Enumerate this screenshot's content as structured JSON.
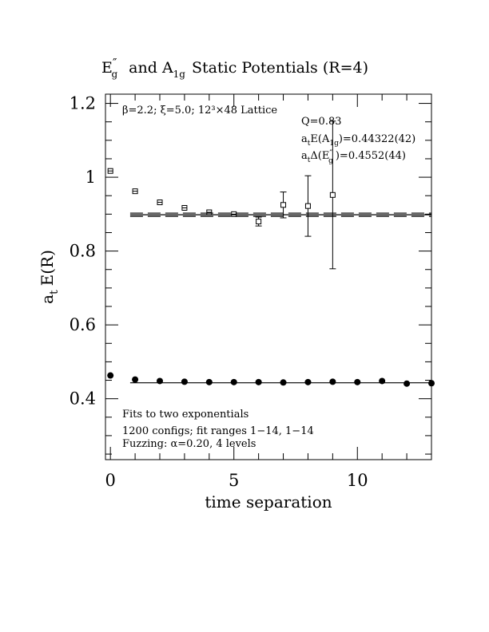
{
  "chart_data": {
    "type": "scatter",
    "title_parts": {
      "p1": "E",
      "p1_sup": "″",
      "p1_sub": "g",
      "p2": "and A",
      "p2_sub": "1g",
      "p3": "Static Potentials (R=4)"
    },
    "xlabel": "time separation",
    "ylabel_parts": {
      "main": "a",
      "sub": "t",
      "rest": "E(R)"
    },
    "xlim": [
      -0.2,
      13
    ],
    "ylim": [
      0.235,
      1.225
    ],
    "xticks": [
      0,
      5,
      10
    ],
    "xtick_labels": [
      "0",
      "5",
      "10"
    ],
    "yticks": [
      0.4,
      0.6,
      0.8,
      1.0,
      1.2
    ],
    "ytick_labels": [
      "0.4",
      "0.6",
      "0.8",
      "1",
      "1.2"
    ],
    "annotations": {
      "lattice": "β=2.2; ξ=5.0; 12³×48 Lattice",
      "q": "Q=0.83",
      "energy_parts": {
        "a": "a",
        "a_sub": "t",
        "b": "E(A",
        "b_sub": "1g",
        "c": ")=0.44322(42)"
      },
      "gap_parts": {
        "a": "a",
        "a_sub": "t",
        "b": "Δ(E",
        "b_sup": "″",
        "b_sub": "g",
        "c": ")=0.4552(44)"
      },
      "fits": "Fits to two exponentials",
      "configs": "1200 configs; fit ranges 1−14, 1−14",
      "fuzzing": "Fuzzing: α=0.20, 4 levels"
    },
    "series": [
      {
        "marker": "filled-circle",
        "x": [
          0,
          1,
          2,
          3,
          4,
          5,
          6,
          7,
          8,
          9,
          10,
          11,
          12,
          13
        ],
        "y": [
          0.463,
          0.452,
          0.448,
          0.446,
          0.445,
          0.445,
          0.445,
          0.444,
          0.445,
          0.446,
          0.445,
          0.448,
          0.441,
          0.442
        ],
        "err": [
          0.003,
          0.003,
          0.003,
          0.003,
          0.003,
          0.003,
          0.003,
          0.003,
          0.003,
          0.004,
          0.003,
          0.004,
          0.004,
          0.004
        ]
      },
      {
        "marker": "open-square",
        "x": [
          0,
          1,
          2,
          3,
          4,
          5,
          6,
          7,
          8,
          9
        ],
        "y": [
          1.017,
          0.962,
          0.932,
          0.917,
          0.905,
          0.9,
          0.88,
          0.925,
          0.922,
          0.952
        ],
        "err": [
          0.002,
          0.002,
          0.003,
          0.004,
          0.004,
          0.006,
          0.012,
          0.035,
          0.082,
          0.2
        ]
      }
    ],
    "fit_lines": [
      {
        "style": "solid",
        "x": [
          0.8,
          13
        ],
        "y": [
          0.4432,
          0.4432
        ]
      },
      {
        "style": "dashed",
        "x": [
          0.8,
          13
        ],
        "y": [
          0.9028,
          0.9028
        ]
      },
      {
        "style": "solid",
        "x": [
          0.8,
          13
        ],
        "y": [
          0.8984,
          0.8984
        ]
      },
      {
        "style": "dashed",
        "x": [
          0.8,
          13
        ],
        "y": [
          0.894,
          0.894
        ]
      }
    ]
  }
}
